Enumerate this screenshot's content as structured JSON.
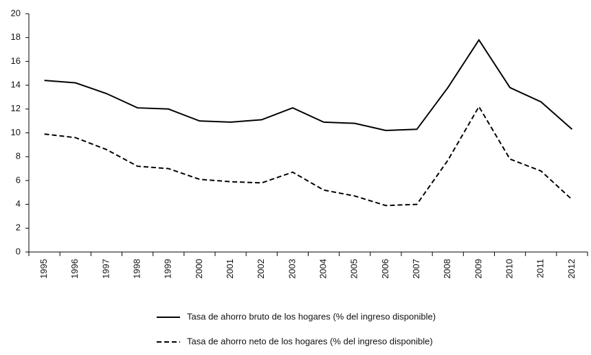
{
  "chart_data": {
    "type": "line",
    "categories": [
      "1995",
      "1996",
      "1997",
      "1998",
      "1999",
      "2000",
      "2001",
      "2002",
      "2003",
      "2004",
      "2005",
      "2006",
      "2007",
      "2008",
      "2009",
      "2010",
      "2011",
      "2012"
    ],
    "series": [
      {
        "name": "Tasa de ahorro bruto de los hogares (% del ingreso disponible)",
        "color": "#000000",
        "dash": "solid",
        "values": [
          14.4,
          14.2,
          13.3,
          12.1,
          12.0,
          11.0,
          10.9,
          11.1,
          12.1,
          10.9,
          10.8,
          10.2,
          10.3,
          13.8,
          17.8,
          13.8,
          12.6,
          10.3
        ]
      },
      {
        "name": "Tasa de ahorro neto de los hogares (% del ingreso disponible)",
        "color": "#000000",
        "dash": "dashed",
        "values": [
          9.9,
          9.6,
          8.6,
          7.2,
          7.0,
          6.1,
          5.9,
          5.8,
          6.7,
          5.2,
          4.7,
          3.9,
          4.0,
          7.7,
          12.2,
          7.8,
          6.8,
          4.4
        ]
      }
    ],
    "ylim": [
      0,
      20
    ],
    "yticks": [
      0,
      2,
      4,
      6,
      8,
      10,
      12,
      14,
      16,
      18,
      20
    ],
    "grid": false,
    "legend": "bottom"
  }
}
